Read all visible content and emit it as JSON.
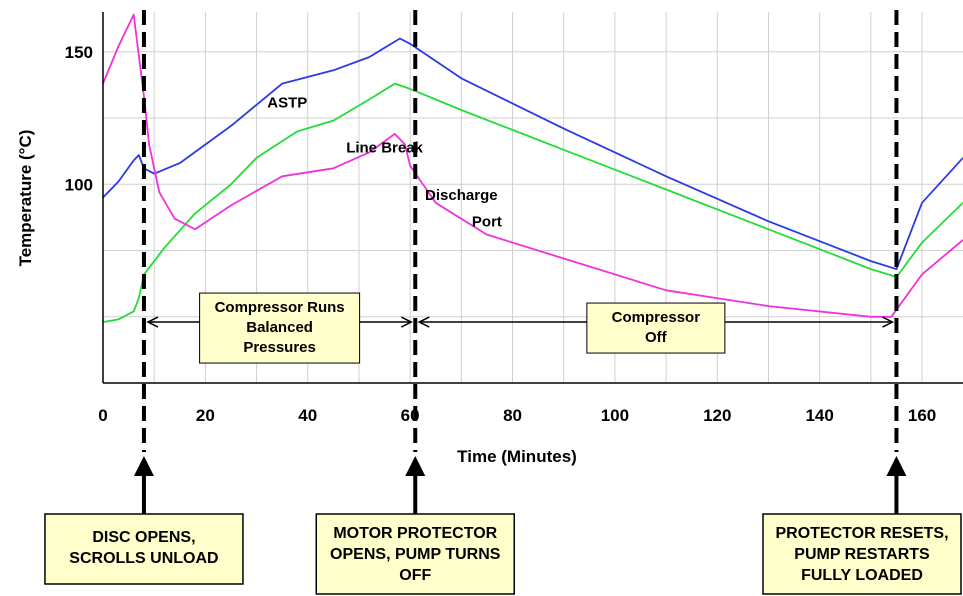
{
  "chart_data": {
    "type": "line",
    "xlabel": "Time (Minutes)",
    "ylabel": "Temperature (°C)",
    "xlim": [
      0,
      168
    ],
    "ylim": [
      25,
      165
    ],
    "xticks": [
      0,
      20,
      40,
      60,
      80,
      100,
      120,
      140,
      160
    ],
    "yticks": [
      100,
      150
    ],
    "grid": true,
    "series": [
      {
        "name": "ASTP",
        "color": "#2b3be0",
        "x": [
          0,
          3,
          6,
          7,
          8,
          10,
          15,
          25,
          35,
          45,
          52,
          58,
          60,
          70,
          90,
          110,
          130,
          150,
          155,
          160,
          168
        ],
        "y": [
          95,
          101,
          109,
          111,
          106,
          104,
          108,
          122,
          138,
          143,
          148,
          155,
          153,
          140,
          121,
          103,
          86,
          71,
          68,
          93,
          110
        ]
      },
      {
        "name": "Line Break",
        "color": "#22dd33",
        "x": [
          0,
          3,
          6,
          7,
          8,
          12,
          18,
          25,
          30,
          38,
          45,
          52,
          57,
          60,
          70,
          90,
          110,
          130,
          150,
          155,
          160,
          168
        ],
        "y": [
          48,
          49,
          52,
          57,
          66,
          76,
          89,
          100,
          110,
          120,
          124,
          132,
          138,
          136,
          128,
          113,
          98,
          83,
          68,
          65,
          78,
          93
        ]
      },
      {
        "name": "Discharge Port",
        "color": "#ee33dd",
        "x": [
          0,
          3,
          6,
          8,
          9,
          11,
          14,
          18,
          25,
          35,
          45,
          52,
          57,
          59,
          60,
          65,
          75,
          90,
          110,
          130,
          150,
          154,
          160,
          168
        ],
        "y": [
          138,
          152,
          164,
          133,
          115,
          97,
          87,
          83,
          92,
          103,
          106,
          112,
          119,
          115,
          107,
          93,
          81,
          72,
          60,
          54,
          50,
          50,
          66,
          79
        ]
      }
    ],
    "series_labels": [
      {
        "text": "ASTP",
        "x": 36,
        "y": 129
      },
      {
        "text": "Line Break",
        "x": 55,
        "y": 112
      },
      {
        "text": "Discharge",
        "x": 70,
        "y": 94
      },
      {
        "text": "Port",
        "x": 75,
        "y": 84
      }
    ],
    "event_lines": [
      8,
      61,
      155
    ],
    "spans": [
      {
        "from": 8,
        "to": 61,
        "y": 48,
        "lines": [
          "Compressor Runs",
          "Balanced",
          "Pressures"
        ]
      },
      {
        "from": 61,
        "to": 155,
        "y": 48,
        "lines": [
          "Compressor",
          "Off"
        ]
      }
    ],
    "annotations": [
      {
        "at": 8,
        "lines": [
          "DISC OPENS,",
          "SCROLLS UNLOAD"
        ]
      },
      {
        "at": 61,
        "lines": [
          "MOTOR PROTECTOR",
          "OPENS, PUMP TURNS",
          "OFF"
        ]
      },
      {
        "at": 155,
        "lines": [
          "PROTECTOR RESETS,",
          "PUMP RESTARTS",
          "FULLY LOADED"
        ]
      }
    ],
    "box_fill": "#ffffcc"
  }
}
